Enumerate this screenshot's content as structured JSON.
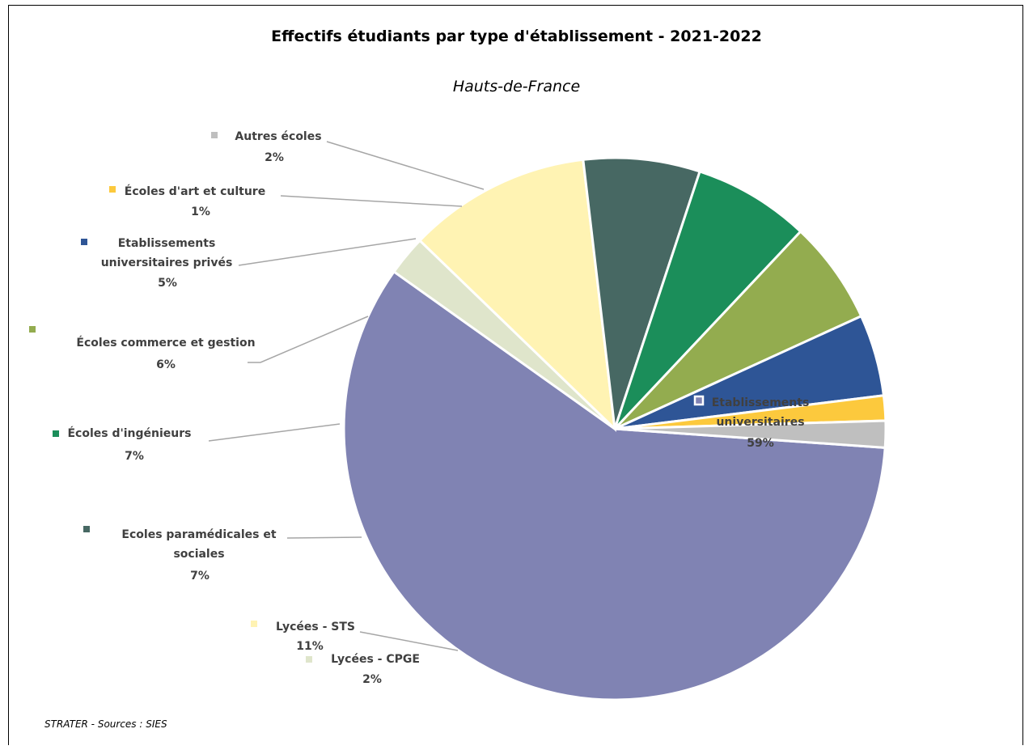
{
  "title": "Effectifs étudiants par type d'établissement - 2021-2022",
  "subtitle": "Hauts-de-France",
  "source": "STRATER - Sources : SIES",
  "chart_data": {
    "type": "pie",
    "title": "Effectifs étudiants par type d'établissement - 2021-2022",
    "subtitle": "Hauts-de-France",
    "slices": [
      {
        "label": "Etablissements universitaires",
        "label_lines": [
          "Etablissements",
          "universitaires"
        ],
        "percent_label": "59%",
        "value": 59.2,
        "color": "#8083b3"
      },
      {
        "label": "Lycées - CPGE",
        "label_lines": [
          "Lycées - CPGE"
        ],
        "percent_label": "2%",
        "value": 2.4,
        "color": "#dfe5cb"
      },
      {
        "label": "Lycées - STS",
        "label_lines": [
          "Lycées - STS"
        ],
        "percent_label": "11%",
        "value": 11.0,
        "color": "#fff3b3"
      },
      {
        "label": "Ecoles paramédicales et sociales",
        "label_lines": [
          "Ecoles paramédicales et",
          "sociales"
        ],
        "percent_label": "7%",
        "value": 7.0,
        "color": "#476863"
      },
      {
        "label": "Écoles d'ingénieurs",
        "label_lines": [
          "Écoles d'ingénieurs"
        ],
        "percent_label": "7%",
        "value": 7.0,
        "color": "#1b8e5a"
      },
      {
        "label": "Écoles commerce et gestion",
        "label_lines": [
          "Écoles commerce et gestion"
        ],
        "percent_label": "6%",
        "value": 6.2,
        "color": "#93ac4f"
      },
      {
        "label": "Etablissements universitaires privés",
        "label_lines": [
          "Etablissements",
          "universitaires privés"
        ],
        "percent_label": "5%",
        "value": 4.9,
        "color": "#2e5596"
      },
      {
        "label": "Écoles d'art et culture",
        "label_lines": [
          "Écoles d'art et culture"
        ],
        "percent_label": "1%",
        "value": 1.5,
        "color": "#fcc93d"
      },
      {
        "label": "Autres écoles",
        "label_lines": [
          "Autres écoles"
        ],
        "percent_label": "2%",
        "value": 1.6,
        "color": "#bfbfbf"
      }
    ]
  }
}
